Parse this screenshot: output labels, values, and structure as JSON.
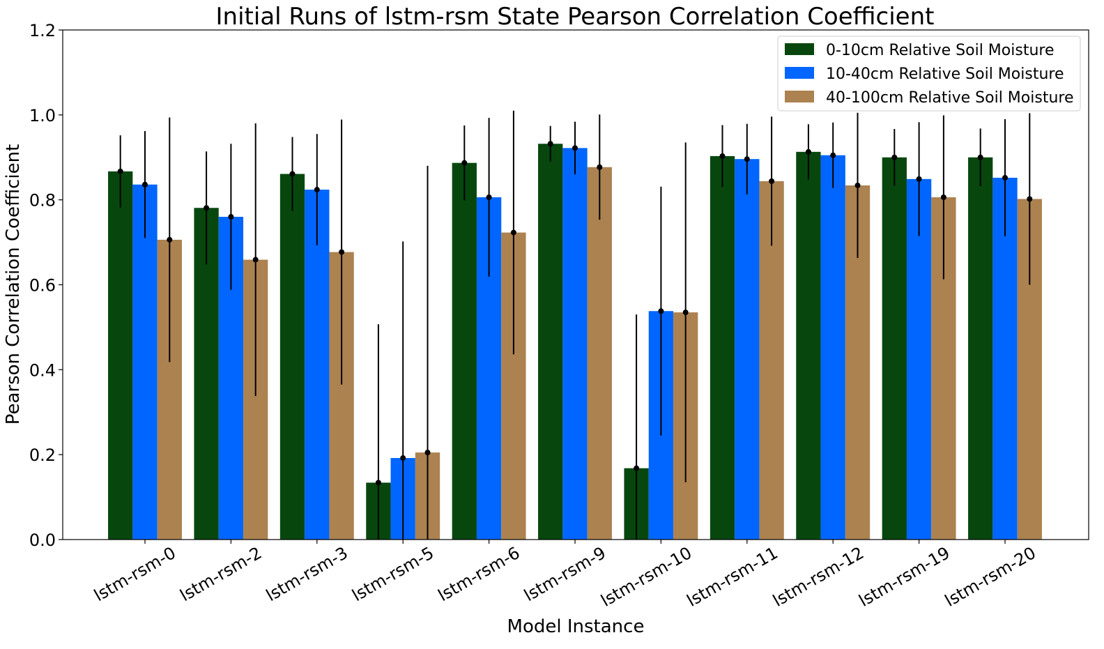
{
  "chart_data": {
    "type": "bar",
    "title": "Initial Runs of lstm-rsm State Pearson Correlation Coefficient",
    "xlabel": "Model Instance",
    "ylabel": "Pearson Correlation Coefficient",
    "ylim": [
      0,
      1.2
    ],
    "yticks": [
      "0.0",
      "0.2",
      "0.4",
      "0.6",
      "0.8",
      "1.0",
      "1.2"
    ],
    "grid": false,
    "legend_position": "top-right",
    "categories": [
      "lstm-rsm-0",
      "lstm-rsm-2",
      "lstm-rsm-3",
      "lstm-rsm-5",
      "lstm-rsm-6",
      "lstm-rsm-9",
      "lstm-rsm-10",
      "lstm-rsm-11",
      "lstm-rsm-12",
      "lstm-rsm-19",
      "lstm-rsm-20"
    ],
    "series": [
      {
        "name": "0-10cm Relative Soil Moisture",
        "color": "#07470e",
        "values": [
          0.867,
          0.781,
          0.861,
          0.134,
          0.887,
          0.932,
          0.168,
          0.903,
          0.913,
          0.9,
          0.9
        ],
        "error": [
          0.085,
          0.133,
          0.087,
          0.373,
          0.088,
          0.042,
          0.362,
          0.073,
          0.065,
          0.067,
          0.068
        ]
      },
      {
        "name": "10-40cm Relative Soil Moisture",
        "color": "#0066ff",
        "values": [
          0.836,
          0.76,
          0.824,
          0.192,
          0.806,
          0.922,
          0.538,
          0.896,
          0.905,
          0.849,
          0.852
        ],
        "error": [
          0.126,
          0.172,
          0.131,
          0.51,
          0.187,
          0.062,
          0.293,
          0.083,
          0.077,
          0.134,
          0.138
        ]
      },
      {
        "name": "40-100cm Relative Soil Moisture",
        "color": "#ac8250",
        "values": [
          0.706,
          0.659,
          0.677,
          0.205,
          0.723,
          0.877,
          0.535,
          0.844,
          0.834,
          0.806,
          0.802
        ],
        "error": [
          0.288,
          0.321,
          0.312,
          0.675,
          0.287,
          0.124,
          0.4,
          0.152,
          0.171,
          0.193,
          0.202
        ]
      }
    ]
  }
}
